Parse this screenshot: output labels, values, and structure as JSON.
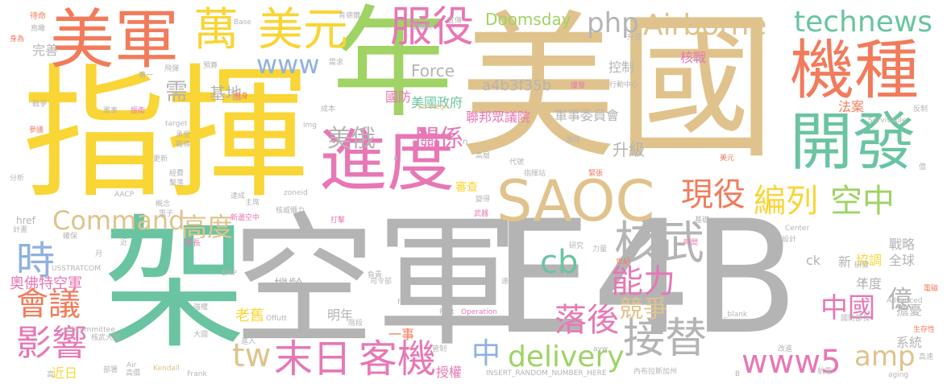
{
  "words": [
    {
      "text": "美國",
      "color": "#e0c38c"
    },
    {
      "text": "空軍",
      "color": "#b4b4b4"
    },
    {
      "text": "E4B",
      "color": "#b4b4b4"
    },
    {
      "text": "指揮",
      "color": "#f9d535"
    },
    {
      "text": "年",
      "color": "#9fd364"
    },
    {
      "text": "架",
      "color": "#6ac4a1"
    },
    {
      "text": "美軍",
      "color": "#f27b5b"
    },
    {
      "text": "機種",
      "color": "#f27b5b"
    },
    {
      "text": "開發",
      "color": "#6ac4a1"
    },
    {
      "text": "進度",
      "color": "#e777b5"
    },
    {
      "text": "SAOC",
      "color": "#e0c38c"
    },
    {
      "text": "萬",
      "color": "#f9d535"
    },
    {
      "text": "美元",
      "color": "#f9d535"
    },
    {
      "text": "服役",
      "color": "#e777b5"
    },
    {
      "text": "核武",
      "color": "#b4b4b4"
    },
    {
      "text": "末日",
      "color": "#e777b5"
    },
    {
      "text": "客機",
      "color": "#e777b5"
    },
    {
      "text": "接替",
      "color": "#b4b4b4"
    },
    {
      "text": "Airborne",
      "color": "#e0c38c"
    },
    {
      "text": "technews",
      "color": "#6ac4a1"
    },
    {
      "text": "php",
      "color": "#b4b4b4"
    },
    {
      "text": "www",
      "color": "#8fb1e0"
    },
    {
      "text": "現役",
      "color": "#f27b5b"
    },
    {
      "text": "編列",
      "color": "#f9d535"
    },
    {
      "text": "空中",
      "color": "#9fd364"
    },
    {
      "text": "Command",
      "color": "#e0c38c"
    },
    {
      "text": "高度",
      "color": "#e0c38c"
    },
    {
      "text": "時",
      "color": "#8fb1e0"
    },
    {
      "text": "會議",
      "color": "#f27b5b"
    },
    {
      "text": "影響",
      "color": "#e777b5"
    },
    {
      "text": "tw",
      "color": "#e0c38c"
    },
    {
      "text": "cb",
      "color": "#6ac4a1"
    },
    {
      "text": "能力",
      "color": "#e777b5"
    },
    {
      "text": "落後",
      "color": "#e777b5"
    },
    {
      "text": "競爭",
      "color": "#e0c38c"
    },
    {
      "text": "中",
      "color": "#8fb1e0"
    },
    {
      "text": "delivery",
      "color": "#9fd364"
    },
    {
      "text": "www5",
      "color": "#e777b5"
    },
    {
      "text": "amp",
      "color": "#e0c38c"
    },
    {
      "text": "中國",
      "color": "#e777b5"
    },
    {
      "text": "億",
      "color": "#b4b4b4"
    },
    {
      "text": "Doomsday",
      "color": "#9fd364"
    },
    {
      "text": "美俄",
      "color": "#b4b4b4"
    },
    {
      "text": "關係",
      "color": "#e777b5"
    },
    {
      "text": "升級",
      "color": "#b4b4b4"
    },
    {
      "text": "基地",
      "color": "#b4b4b4"
    },
    {
      "text": "需",
      "color": "#b4b4b4"
    },
    {
      "text": "奧佛特空軍",
      "color": "#e777b5"
    },
    {
      "text": "Force",
      "color": "#b4b4b4"
    },
    {
      "text": "a4b3f35b",
      "color": "#b4b4b4"
    },
    {
      "text": "美國政府",
      "color": "#6ac4a1"
    },
    {
      "text": "聯邦眾議院",
      "color": "#e777b5"
    },
    {
      "text": "軍事委員會",
      "color": "#b4b4b4"
    },
    {
      "text": "國防",
      "color": "#e777b5"
    },
    {
      "text": "控制",
      "color": "#b4b4b4"
    },
    {
      "text": "核戰",
      "color": "#e777b5"
    },
    {
      "text": "法案",
      "color": "#f27b5b"
    },
    {
      "text": "戰略",
      "color": "#b4b4b4"
    },
    {
      "text": "全球",
      "color": "#b4b4b4"
    },
    {
      "text": "協調",
      "color": "#f9d535"
    },
    {
      "text": "新",
      "color": "#b4b4b4"
    },
    {
      "text": "年度",
      "color": "#b4b4b4"
    },
    {
      "text": "ck",
      "color": "#b4b4b4"
    },
    {
      "text": "系統",
      "color": "#b4b4b4"
    },
    {
      "text": "擔憂",
      "color": "#b4b4b4"
    },
    {
      "text": "老舊",
      "color": "#f9d535"
    },
    {
      "text": "機齡",
      "color": "#b4b4b4"
    },
    {
      "text": "明年",
      "color": "#b4b4b4"
    },
    {
      "text": "一事",
      "color": "#f27b5b"
    },
    {
      "text": "授權",
      "color": "#e777b5"
    },
    {
      "text": "近日",
      "color": "#f9d535"
    },
    {
      "text": "完善",
      "color": "#b4b4b4"
    },
    {
      "text": "審查",
      "color": "#f9d535"
    },
    {
      "text": "INSERT_RANDOM_NUMBER_HERE",
      "color": "#b4b4b4"
    },
    {
      "text": "Offutt",
      "color": "#b4b4b4"
    },
    {
      "text": "frets",
      "color": "#b4b4b4"
    },
    {
      "text": "Post",
      "color": "#b4b4b4"
    },
    {
      "text": "Operation",
      "color": "#e777b5"
    },
    {
      "text": "Strategic",
      "color": "#e0c38c"
    },
    {
      "text": "Survivable",
      "color": "#b4b4b4"
    },
    {
      "text": "Advanced",
      "color": "#b4b4b4"
    },
    {
      "text": "subcommittee",
      "color": "#b4b4b4"
    },
    {
      "text": "USSTRATCOM",
      "color": "#b4b4b4"
    },
    {
      "text": "Kendall",
      "color": "#e0c38c"
    },
    {
      "text": "Frank",
      "color": "#b4b4b4"
    },
    {
      "text": "AACP",
      "color": "#b4b4b4"
    },
    {
      "text": "zoneid",
      "color": "#b4b4b4"
    },
    {
      "text": "href",
      "color": "#b4b4b4"
    },
    {
      "text": "img",
      "color": "#b4b4b4"
    },
    {
      "text": "target",
      "color": "#b4b4b4"
    },
    {
      "text": "_blank",
      "color": "#b4b4b4"
    },
    {
      "text": "Center",
      "color": "#b4b4b4"
    },
    {
      "text": "aging",
      "color": "#b4b4b4"
    },
    {
      "text": "avw",
      "color": "#b4b4b4"
    },
    {
      "text": "Base",
      "color": "#b4b4b4"
    },
    {
      "text": "Air",
      "color": "#b4b4b4"
    },
    {
      "text": "src",
      "color": "#b4b4b4"
    },
    {
      "text": "EMP",
      "color": "#b4b4b4"
    },
    {
      "text": "待命",
      "color": "#f27b5b"
    },
    {
      "text": "肯德爾",
      "color": "#b4b4b4"
    },
    {
      "text": "反制",
      "color": "#b4b4b4"
    },
    {
      "text": "身為",
      "color": "#f27b5b"
    },
    {
      "text": "行動中心",
      "color": "#b4b4b4"
    },
    {
      "text": "核武大國",
      "color": "#b4b4b4"
    },
    {
      "text": "新邊空中",
      "color": "#e777b5"
    },
    {
      "text": "核威懾力",
      "color": "#b4b4b4"
    },
    {
      "text": "指揮站",
      "color": "#b4b4b4"
    },
    {
      "text": "內布拉斯加州",
      "color": "#b4b4b4"
    },
    {
      "text": "國防部長",
      "color": "#b4b4b4"
    },
    {
      "text": "司令部",
      "color": "#b4b4b4"
    },
    {
      "text": "生存性",
      "color": "#f27b5b"
    },
    {
      "text": "爆發",
      "color": "#e777b5"
    },
    {
      "text": "電磁",
      "color": "#f27b5b"
    },
    {
      "text": "部長",
      "color": "#e777b5"
    },
    {
      "text": "第一",
      "color": "#b4b4b4"
    },
    {
      "text": "需求",
      "color": "#b4b4b4"
    },
    {
      "text": "成本",
      "color": "#b4b4b4"
    },
    {
      "text": "機身",
      "color": "#f27b5b"
    },
    {
      "text": "研究",
      "color": "#b4b4b4"
    },
    {
      "text": "代號",
      "color": "#b4b4b4"
    },
    {
      "text": "過往",
      "color": "#b4b4b4"
    },
    {
      "text": "研發",
      "color": "#b4b4b4"
    },
    {
      "text": "航電",
      "color": "#b4b4b4"
    },
    {
      "text": "高速",
      "color": "#b4b4b4"
    },
    {
      "text": "改進",
      "color": "#b4b4b4"
    },
    {
      "text": "高層",
      "color": "#b4b4b4"
    },
    {
      "text": "緊張",
      "color": "#f27b5b"
    },
    {
      "text": "宣傳",
      "color": "#b4b4b4"
    },
    {
      "text": "達成",
      "color": "#b4b4b4"
    },
    {
      "text": "主席",
      "color": "#b4b4b4"
    },
    {
      "text": "概念",
      "color": "#b4b4b4"
    },
    {
      "text": "電子",
      "color": "#b4b4b4"
    },
    {
      "text": "確保",
      "color": "#b4b4b4"
    },
    {
      "text": "計畫",
      "color": "#b4b4b4"
    },
    {
      "text": "打擊",
      "color": "#e777b5"
    },
    {
      "text": "武器",
      "color": "#e777b5"
    },
    {
      "text": "變得",
      "color": "#b4b4b4"
    },
    {
      "text": "遠低",
      "color": "#b4b4b4"
    },
    {
      "text": "時間",
      "color": "#e777b5"
    },
    {
      "text": "基礎",
      "color": "#b4b4b4"
    },
    {
      "text": "設計",
      "color": "#b4b4b4"
    },
    {
      "text": "力量",
      "color": "#b4b4b4"
    },
    {
      "text": "世紀",
      "color": "#f27b5b"
    },
    {
      "text": "預算",
      "color": "#b4b4b4"
    },
    {
      "text": "經費",
      "color": "#b4b4b4"
    },
    {
      "text": "擊落",
      "color": "#b4b4b4"
    },
    {
      "text": "飛彈",
      "color": "#b4b4b4"
    },
    {
      "text": "戰爭",
      "color": "#b4b4b4"
    },
    {
      "text": "參議",
      "color": "#f27b5b"
    },
    {
      "text": "軍事",
      "color": "#b4b4b4"
    },
    {
      "text": "振衛",
      "color": "#e777b5"
    },
    {
      "text": "承受",
      "color": "#b4b4b4"
    },
    {
      "text": "報導",
      "color": "#b4b4b4"
    },
    {
      "text": "更新",
      "color": "#b4b4b4"
    },
    {
      "text": "分析",
      "color": "#b4b4b4"
    },
    {
      "text": "鳥瞰",
      "color": "#b4b4b4"
    },
    {
      "text": "眾議院",
      "color": "#b4b4b4"
    },
    {
      "text": "升空",
      "color": "#b4b4b4"
    },
    {
      "text": "強權",
      "color": "#b4b4b4"
    },
    {
      "text": "大國",
      "color": "#b4b4b4"
    },
    {
      "text": "高價",
      "color": "#b4b4b4"
    },
    {
      "text": "部署",
      "color": "#b4b4b4"
    },
    {
      "text": "管制",
      "color": "#b4b4b4"
    },
    {
      "text": "負責",
      "color": "#b4b4b4"
    },
    {
      "text": "階段",
      "color": "#b4b4b4"
    },
    {
      "text": "進入",
      "color": "#b4b4b4"
    },
    {
      "text": "美元",
      "color": "#f27b5b"
    },
    {
      "text": "月",
      "color": "#b4b4b4"
    },
    {
      "text": "近",
      "color": "#b4b4b4"
    },
    {
      "text": "高",
      "color": "#b4b4b4"
    },
    {
      "text": "億",
      "color": "#b4b4b4"
    },
    {
      "text": "太",
      "color": "#b4b4b4"
    },
    {
      "text": "n",
      "color": "#b4b4b4"
    },
    {
      "text": "a",
      "color": "#b4b4b4"
    },
    {
      "text": "B",
      "color": "#b4b4b4"
    }
  ]
}
